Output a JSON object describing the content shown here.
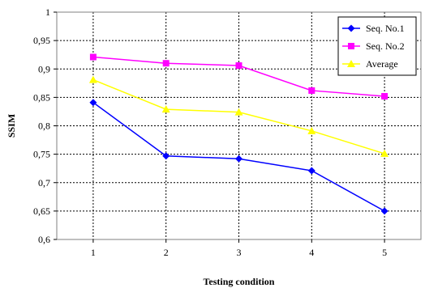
{
  "chart_data": {
    "type": "line",
    "title": "",
    "xlabel": "Testing condition",
    "ylabel": "SSIM",
    "x": [
      1,
      2,
      3,
      4,
      5
    ],
    "ylim": [
      0.6,
      1
    ],
    "ytick_labels": [
      "0,6",
      "0,65",
      "0,7",
      "0,75",
      "0,8",
      "0,85",
      "0,9",
      "0,95",
      "1"
    ],
    "xtick_labels": [
      "1",
      "2",
      "3",
      "4",
      "5"
    ],
    "grid": true,
    "legend": "top-right",
    "series": [
      {
        "name": "Seq. No.1",
        "color": "#0000ff",
        "marker": "diamond",
        "values": [
          0.841,
          0.747,
          0.742,
          0.721,
          0.65
        ]
      },
      {
        "name": "Seq. No.2",
        "color": "#ff00ff",
        "marker": "square",
        "values": [
          0.921,
          0.91,
          0.906,
          0.862,
          0.852
        ]
      },
      {
        "name": "Average",
        "color": "#ffff00",
        "marker": "triangle",
        "values": [
          0.881,
          0.829,
          0.824,
          0.791,
          0.751
        ]
      }
    ]
  }
}
